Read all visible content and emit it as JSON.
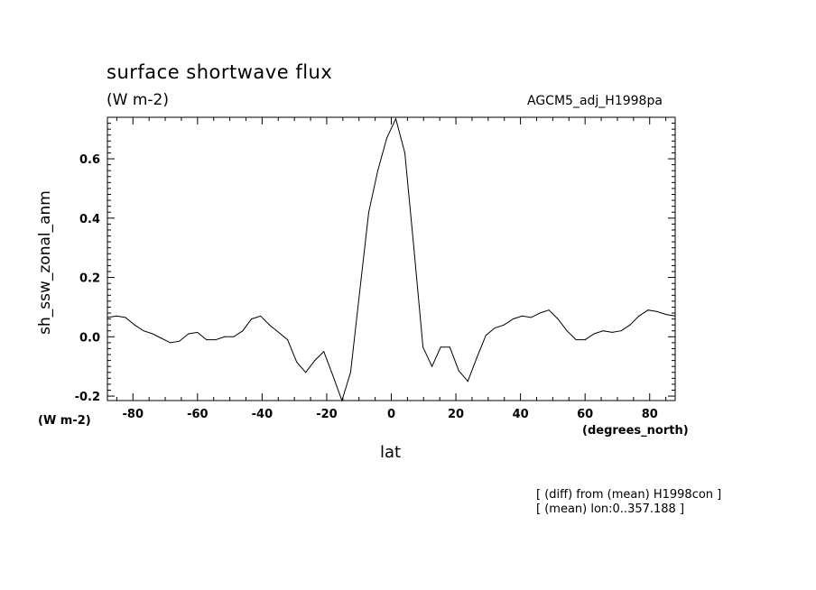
{
  "chart_data": {
    "type": "line",
    "title": "surface shortwave flux",
    "units": "(W m-2)",
    "run_label": "AGCM5_adj_H1998pa",
    "ylabel": "sh_ssw_zonal_anm",
    "yunits": "(W m-2)",
    "xlabel": "lat",
    "xunits": "(degrees_north)",
    "notes": [
      "[ (diff) from (mean) H1998con ]",
      "[ (mean) lon:0..357.188 ]"
    ],
    "xlim": [
      -87.9,
      87.9
    ],
    "ylim": [
      -0.215,
      0.74
    ],
    "xticks": [
      -80,
      -60,
      -40,
      -20,
      0,
      20,
      40,
      60,
      80
    ],
    "yticks": [
      -0.2,
      0.0,
      0.2,
      0.4,
      0.6
    ],
    "ytick_labels": [
      "-0.2",
      "0.0",
      "0.2",
      "0.4",
      "0.6"
    ],
    "line_color": "#000000",
    "series": [
      {
        "x": [
          -87.9,
          -85.1,
          -82.3,
          -79.5,
          -76.7,
          -73.9,
          -71.2,
          -68.4,
          -65.6,
          -62.8,
          -60.0,
          -57.2,
          -54.4,
          -51.6,
          -48.8,
          -46.0,
          -43.3,
          -40.5,
          -37.7,
          -34.9,
          -32.1,
          -29.3,
          -26.5,
          -23.7,
          -20.9,
          -18.1,
          -15.3,
          -12.6,
          -9.8,
          -7.0,
          -4.2,
          -1.4,
          1.4,
          4.2,
          7.0,
          9.8,
          12.6,
          15.3,
          18.1,
          20.9,
          23.7,
          26.5,
          29.3,
          32.1,
          34.9,
          37.7,
          40.5,
          43.3,
          46.0,
          48.8,
          51.6,
          54.4,
          57.2,
          60.0,
          62.8,
          65.6,
          68.4,
          71.2,
          73.9,
          76.7,
          79.5,
          82.3,
          85.1,
          87.9
        ],
        "y": [
          0.065,
          0.07,
          0.065,
          0.04,
          0.02,
          0.01,
          -0.005,
          -0.02,
          -0.015,
          0.01,
          0.015,
          -0.01,
          -0.01,
          0.0,
          0.0,
          0.02,
          0.06,
          0.07,
          0.04,
          0.015,
          -0.01,
          -0.085,
          -0.12,
          -0.08,
          -0.05,
          -0.13,
          -0.22,
          -0.12,
          0.15,
          0.42,
          0.56,
          0.67,
          0.735,
          0.62,
          0.3,
          -0.035,
          -0.1,
          -0.035,
          -0.035,
          -0.115,
          -0.15,
          -0.07,
          0.005,
          0.03,
          0.04,
          0.06,
          0.07,
          0.065,
          0.08,
          0.09,
          0.06,
          0.02,
          -0.01,
          -0.01,
          0.01,
          0.02,
          0.015,
          0.02,
          0.04,
          0.07,
          0.09,
          0.085,
          0.075,
          0.07
        ]
      }
    ]
  }
}
